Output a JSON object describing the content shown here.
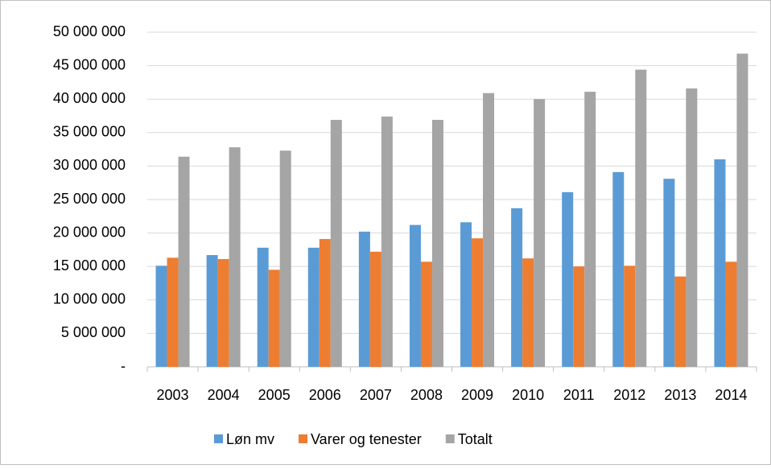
{
  "chart_data": {
    "type": "bar",
    "categories": [
      "2003",
      "2004",
      "2005",
      "2006",
      "2007",
      "2008",
      "2009",
      "2010",
      "2011",
      "2012",
      "2013",
      "2014"
    ],
    "series": [
      {
        "name": "Løn mv",
        "color": "#5b9bd5",
        "values": [
          15100000,
          16700000,
          17800000,
          17800000,
          20200000,
          21200000,
          21600000,
          23700000,
          26100000,
          29100000,
          28100000,
          31000000
        ]
      },
      {
        "name": "Varer og tenester",
        "color": "#ed7d31",
        "values": [
          16300000,
          16100000,
          14500000,
          19100000,
          17200000,
          15700000,
          19200000,
          16200000,
          15000000,
          15100000,
          13500000,
          15700000
        ]
      },
      {
        "name": "Totalt",
        "color": "#a5a5a5",
        "values": [
          31400000,
          32800000,
          32300000,
          36900000,
          37400000,
          36900000,
          40900000,
          40000000,
          41100000,
          44400000,
          41600000,
          46800000
        ]
      }
    ],
    "ylim": [
      0,
      50000000
    ],
    "yticks": [
      {
        "value": 0,
        "label": "-"
      },
      {
        "value": 5000000,
        "label": "5 000 000"
      },
      {
        "value": 10000000,
        "label": "10 000 000"
      },
      {
        "value": 15000000,
        "label": "15 000 000"
      },
      {
        "value": 20000000,
        "label": "20 000 000"
      },
      {
        "value": 25000000,
        "label": "25 000 000"
      },
      {
        "value": 30000000,
        "label": "30 000 000"
      },
      {
        "value": 35000000,
        "label": "35 000 000"
      },
      {
        "value": 40000000,
        "label": "40 000 000"
      },
      {
        "value": 45000000,
        "label": "45 000 000"
      },
      {
        "value": 50000000,
        "label": "50 000 000"
      }
    ],
    "grid": true,
    "legend": "bottom"
  }
}
